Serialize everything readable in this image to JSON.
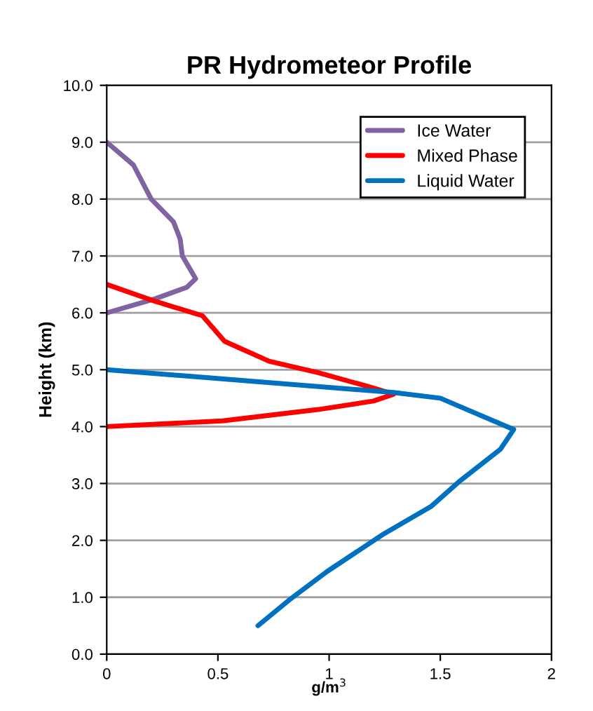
{
  "chart_data": {
    "type": "line",
    "title": "PR Hydrometeor Profile",
    "xlabel": "g/m$^{3}$",
    "ylabel": "Height (km)",
    "series": [
      {
        "name": "Ice Water",
        "color": "#8064a2",
        "x": [
          0,
          0.12,
          0.16,
          0.2,
          0.3,
          0.33,
          0.34,
          0.4,
          0.36,
          0.22,
          0
        ],
        "values": [
          9.0,
          8.6,
          8.3,
          8.0,
          7.6,
          7.3,
          7.0,
          6.6,
          6.45,
          6.25,
          6.0
        ]
      },
      {
        "name": "Mixed Phase",
        "color": "#ff0000",
        "x": [
          0,
          0.22,
          0.43,
          0.53,
          0.73,
          0.95,
          1.18,
          1.29,
          1.2,
          0.95,
          0.52,
          0
        ],
        "values": [
          6.5,
          6.2,
          5.95,
          5.5,
          5.15,
          4.95,
          4.7,
          4.57,
          4.45,
          4.3,
          4.1,
          4.0
        ]
      },
      {
        "name": "Liquid Water",
        "color": "#0070c0",
        "x": [
          0,
          1.29,
          1.5,
          1.83,
          1.77,
          1.59,
          1.46,
          1.24,
          0.99,
          0.82,
          0.68
        ],
        "values": [
          5.0,
          4.6,
          4.5,
          3.95,
          3.6,
          3.05,
          2.6,
          2.1,
          1.45,
          0.95,
          0.5
        ]
      }
    ],
    "xlim": [
      0,
      2
    ],
    "xticks": [
      0,
      0.5,
      1,
      1.5,
      2
    ],
    "ylim": [
      0,
      10
    ],
    "yticks": [
      {
        "value": 0,
        "label": "0.0"
      },
      {
        "value": 1,
        "label": "1.0"
      },
      {
        "value": 2,
        "label": "2.0"
      },
      {
        "value": 3,
        "label": "3.0"
      },
      {
        "value": 4,
        "label": "4.0"
      },
      {
        "value": 5,
        "label": "5.0"
      },
      {
        "value": 6,
        "label": "6.0"
      },
      {
        "value": 7,
        "label": "7.0"
      },
      {
        "value": 8,
        "label": "8.0"
      },
      {
        "value": 9,
        "label": "9.0"
      },
      {
        "value": 10,
        "label": "10.0"
      }
    ],
    "grid": "y",
    "legend": "top right",
    "marker": "none",
    "line_style": "solid"
  }
}
